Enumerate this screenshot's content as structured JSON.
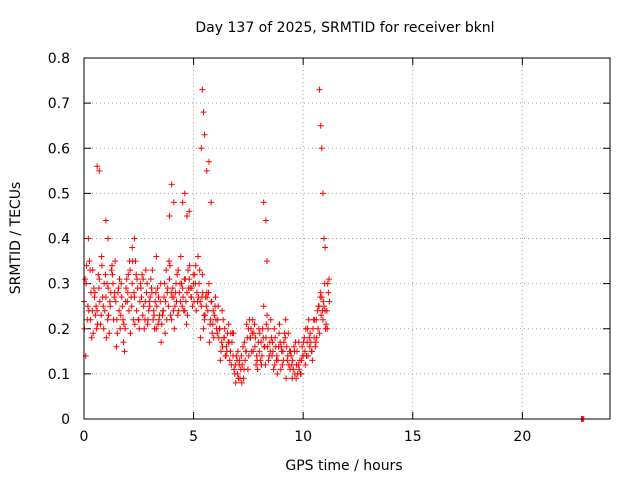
{
  "chart_data": {
    "type": "scatter",
    "title": "Day 137 of 2025, SRMTID for receiver bknl",
    "xlabel": "GPS time / hours",
    "ylabel": "SRMTID / TECUs",
    "xlim": [
      0,
      24
    ],
    "ylim": [
      0,
      0.8
    ],
    "grid": true,
    "marker": "plus",
    "series": [
      {
        "name": "SRMTID",
        "color": "#ff0000",
        "x": [
          0.0,
          0.1,
          0.2,
          0.3,
          0.4,
          0.5,
          0.6,
          0.7,
          0.8,
          0.9,
          1.0,
          1.1,
          1.2,
          1.3,
          1.4,
          1.5,
          1.6,
          1.7,
          1.8,
          1.9,
          2.0,
          2.1,
          2.2,
          2.3,
          2.4,
          2.5,
          2.6,
          2.7,
          2.8,
          2.9,
          3.0,
          3.1,
          3.2,
          3.3,
          3.4,
          3.5,
          3.6,
          3.7,
          3.8,
          3.9,
          4.0,
          4.1,
          4.2,
          4.3,
          4.4,
          4.5,
          4.6,
          4.7,
          4.8,
          4.9,
          5.0,
          5.1,
          5.2,
          5.3,
          5.4,
          5.5,
          5.6,
          5.7,
          5.8,
          5.9,
          6.0,
          6.1,
          6.2,
          6.3,
          6.4,
          6.5,
          6.6,
          6.7,
          6.8,
          6.9,
          7.0,
          7.1,
          7.2,
          7.3,
          7.4,
          7.5,
          7.6,
          7.7,
          7.8,
          7.9,
          8.0,
          8.1,
          8.2,
          8.3,
          8.4,
          8.5,
          8.6,
          8.7,
          8.8,
          8.9,
          9.0,
          9.1,
          9.2,
          9.3,
          9.4,
          9.5,
          9.6,
          9.7,
          9.8,
          9.9,
          10.0,
          10.1,
          10.2,
          10.3,
          10.4,
          10.5,
          10.6,
          10.7,
          10.8,
          10.9,
          11.0,
          11.1,
          11.2,
          0.05,
          0.15,
          0.25,
          0.35,
          0.45,
          0.55,
          0.65,
          0.75,
          0.85,
          0.95,
          1.05,
          1.15,
          1.25,
          1.35,
          1.45,
          1.55,
          1.65,
          1.75,
          1.85,
          1.95,
          2.05,
          2.15,
          2.25,
          2.35,
          2.45,
          2.55,
          2.65,
          2.75,
          2.85,
          2.95,
          3.05,
          3.15,
          3.25,
          3.35,
          3.45,
          3.55,
          3.65,
          3.75,
          3.85,
          3.95,
          4.05,
          4.15,
          4.25,
          4.35,
          4.45,
          4.55,
          4.65,
          4.75,
          4.85,
          4.95,
          5.05,
          5.15,
          5.25,
          5.35,
          5.45,
          5.55,
          5.65,
          5.75,
          5.85,
          5.95,
          6.05,
          6.15,
          6.25,
          6.35,
          6.45,
          6.55,
          6.65,
          6.75,
          6.85,
          6.95,
          7.05,
          7.15,
          7.25,
          7.35,
          7.45,
          7.55,
          7.65,
          7.75,
          7.85,
          7.95,
          8.05,
          8.15,
          8.25,
          8.35,
          8.45,
          8.55,
          8.65,
          8.75,
          8.85,
          8.95,
          9.05,
          9.15,
          9.25,
          9.35,
          9.45,
          9.55,
          9.65,
          9.75,
          9.85,
          9.95,
          10.05,
          10.15,
          10.25,
          10.35,
          10.45,
          10.55,
          10.65,
          10.75,
          10.85,
          10.95,
          11.05,
          11.15,
          0.02,
          0.12,
          0.22,
          0.32,
          0.42,
          0.52,
          0.62,
          0.72,
          0.82,
          0.92,
          1.02,
          1.12,
          1.22,
          1.32,
          1.42,
          1.52,
          1.62,
          1.72,
          1.82,
          1.92,
          2.02,
          2.12,
          2.22,
          2.32,
          2.42,
          2.52,
          2.62,
          2.72,
          2.82,
          2.92,
          3.02,
          3.12,
          3.22,
          3.32,
          3.42,
          3.52,
          3.62,
          3.72,
          3.82,
          3.92,
          4.02,
          4.12,
          4.22,
          4.32,
          4.42,
          4.52,
          4.62,
          4.72,
          4.82,
          4.92,
          5.02,
          5.12,
          5.22,
          5.32,
          5.42,
          5.52,
          5.62,
          5.72,
          5.82,
          5.92,
          6.02,
          6.12,
          6.22,
          6.32,
          6.42,
          6.52,
          6.62,
          6.72,
          6.82,
          6.92,
          7.02,
          7.12,
          7.22,
          7.32,
          7.42,
          7.52,
          7.62,
          7.72,
          7.82,
          7.92,
          8.02,
          8.12,
          8.22,
          8.32,
          8.42,
          8.52,
          8.62,
          8.72,
          8.82,
          8.92,
          9.02,
          9.12,
          9.22,
          9.32,
          9.42,
          9.52,
          9.62,
          9.72,
          9.82,
          9.92,
          10.02,
          10.12,
          10.22,
          10.32,
          10.42,
          10.52,
          10.62,
          10.72,
          10.82,
          10.92,
          11.02,
          11.12,
          0.08,
          0.18,
          0.28,
          0.38,
          0.48,
          0.58,
          0.68,
          0.78,
          0.88,
          0.98,
          1.08,
          1.18,
          1.28,
          1.38,
          1.48,
          1.58,
          1.68,
          1.78,
          1.88,
          1.98,
          2.08,
          2.18,
          2.28,
          2.38,
          2.48,
          2.58,
          2.68,
          2.78,
          2.88,
          2.98,
          3.08,
          3.18,
          3.28,
          3.38,
          3.48,
          3.58,
          3.68,
          3.78,
          3.88,
          3.98,
          4.08,
          4.18,
          4.28,
          4.38,
          4.48,
          4.58,
          4.68,
          4.78,
          4.88,
          4.98,
          5.08,
          5.18,
          5.28,
          5.38,
          5.48,
          5.58,
          5.68,
          5.78,
          5.88,
          5.98,
          6.08,
          6.18,
          6.28,
          6.38,
          6.48,
          6.58,
          6.68,
          6.78,
          6.88,
          6.98,
          7.08,
          7.18,
          7.28,
          7.38,
          7.48,
          7.58,
          7.68,
          7.78,
          7.88,
          7.98,
          8.08,
          8.18,
          8.28,
          8.38,
          8.48,
          8.58,
          8.68,
          8.78,
          8.88,
          8.98,
          9.08,
          9.18,
          9.28,
          9.38,
          9.48,
          9.58,
          9.68,
          9.78,
          9.88,
          9.98,
          10.08,
          10.18,
          10.28,
          10.38,
          10.48,
          10.58,
          10.68,
          10.78,
          10.88,
          10.98,
          11.08,
          11.18,
          0.6,
          0.7,
          5.35,
          5.4,
          5.45,
          5.5,
          5.6,
          5.7,
          5.8,
          10.75,
          10.8,
          10.85,
          10.9,
          10.95,
          11.0,
          8.2,
          8.3,
          8.35,
          4.0,
          4.1,
          1.0,
          1.1,
          2.2,
          2.3,
          3.3,
          3.9,
          4.5,
          4.6,
          4.7,
          4.8,
          22.7,
          22.75,
          22.8
        ],
        "y": [
          0.26,
          0.3,
          0.4,
          0.22,
          0.33,
          0.28,
          0.24,
          0.31,
          0.36,
          0.2,
          0.27,
          0.29,
          0.25,
          0.32,
          0.28,
          0.22,
          0.24,
          0.3,
          0.17,
          0.26,
          0.28,
          0.33,
          0.3,
          0.27,
          0.24,
          0.22,
          0.29,
          0.31,
          0.26,
          0.21,
          0.25,
          0.28,
          0.23,
          0.2,
          0.27,
          0.3,
          0.24,
          0.19,
          0.28,
          0.31,
          0.22,
          0.27,
          0.3,
          0.33,
          0.26,
          0.29,
          0.24,
          0.28,
          0.31,
          0.27,
          0.3,
          0.34,
          0.36,
          0.26,
          0.32,
          0.22,
          0.28,
          0.3,
          0.26,
          0.24,
          0.27,
          0.22,
          0.2,
          0.24,
          0.18,
          0.16,
          0.21,
          0.19,
          0.14,
          0.12,
          0.1,
          0.13,
          0.08,
          0.11,
          0.15,
          0.2,
          0.18,
          0.22,
          0.16,
          0.13,
          0.15,
          0.12,
          0.25,
          0.18,
          0.2,
          0.15,
          0.17,
          0.12,
          0.14,
          0.19,
          0.16,
          0.13,
          0.22,
          0.14,
          0.11,
          0.09,
          0.15,
          0.12,
          0.17,
          0.1,
          0.14,
          0.12,
          0.2,
          0.16,
          0.15,
          0.18,
          0.22,
          0.25,
          0.28,
          0.22,
          0.24,
          0.2,
          0.26,
          0.31,
          0.22,
          0.35,
          0.18,
          0.29,
          0.25,
          0.32,
          0.21,
          0.27,
          0.24,
          0.3,
          0.19,
          0.33,
          0.22,
          0.26,
          0.28,
          0.2,
          0.25,
          0.15,
          0.31,
          0.24,
          0.27,
          0.22,
          0.35,
          0.29,
          0.26,
          0.32,
          0.2,
          0.28,
          0.24,
          0.31,
          0.22,
          0.26,
          0.29,
          0.23,
          0.21,
          0.27,
          0.33,
          0.25,
          0.23,
          0.29,
          0.25,
          0.32,
          0.28,
          0.3,
          0.24,
          0.26,
          0.33,
          0.29,
          0.25,
          0.32,
          0.28,
          0.3,
          0.25,
          0.2,
          0.27,
          0.24,
          0.21,
          0.19,
          0.23,
          0.2,
          0.18,
          0.15,
          0.22,
          0.14,
          0.19,
          0.13,
          0.17,
          0.11,
          0.14,
          0.09,
          0.11,
          0.16,
          0.13,
          0.18,
          0.22,
          0.15,
          0.19,
          0.12,
          0.17,
          0.13,
          0.2,
          0.16,
          0.23,
          0.14,
          0.18,
          0.11,
          0.16,
          0.13,
          0.17,
          0.12,
          0.19,
          0.16,
          0.12,
          0.14,
          0.11,
          0.17,
          0.1,
          0.13,
          0.16,
          0.18,
          0.14,
          0.22,
          0.17,
          0.2,
          0.16,
          0.24,
          0.19,
          0.27,
          0.25,
          0.21,
          0.28,
          0.2,
          0.34,
          0.24,
          0.28,
          0.19,
          0.23,
          0.21,
          0.26,
          0.34,
          0.3,
          0.18,
          0.23,
          0.28,
          0.3,
          0.35,
          0.19,
          0.31,
          0.27,
          0.21,
          0.29,
          0.32,
          0.19,
          0.35,
          0.21,
          0.31,
          0.2,
          0.27,
          0.25,
          0.33,
          0.22,
          0.27,
          0.33,
          0.2,
          0.25,
          0.22,
          0.17,
          0.24,
          0.26,
          0.29,
          0.34,
          0.27,
          0.2,
          0.26,
          0.24,
          0.36,
          0.27,
          0.31,
          0.23,
          0.34,
          0.29,
          0.26,
          0.24,
          0.27,
          0.18,
          0.28,
          0.23,
          0.27,
          0.17,
          0.26,
          0.18,
          0.22,
          0.25,
          0.13,
          0.16,
          0.2,
          0.15,
          0.17,
          0.12,
          0.19,
          0.08,
          0.15,
          0.09,
          0.12,
          0.17,
          0.21,
          0.14,
          0.2,
          0.15,
          0.18,
          0.11,
          0.19,
          0.14,
          0.16,
          0.21,
          0.13,
          0.22,
          0.15,
          0.18,
          0.1,
          0.21,
          0.15,
          0.17,
          0.09,
          0.19,
          0.15,
          0.13,
          0.1,
          0.15,
          0.11,
          0.13,
          0.17,
          0.2,
          0.14,
          0.19,
          0.13,
          0.22,
          0.18,
          0.25,
          0.23,
          0.26,
          0.2,
          0.3,
          0.14,
          0.25,
          0.33,
          0.24,
          0.27,
          0.2,
          0.29,
          0.23,
          0.25,
          0.32,
          0.22,
          0.26,
          0.34,
          0.27,
          0.16,
          0.29,
          0.23,
          0.22,
          0.2,
          0.26,
          0.35,
          0.25,
          0.28,
          0.32,
          0.22,
          0.3,
          0.23,
          0.22,
          0.3,
          0.26,
          0.29,
          0.24,
          0.28,
          0.21,
          0.26,
          0.23,
          0.3,
          0.22,
          0.35,
          0.28,
          0.24,
          0.28,
          0.23,
          0.3,
          0.25,
          0.31,
          0.21,
          0.29,
          0.27,
          0.32,
          0.3,
          0.26,
          0.33,
          0.27,
          0.23,
          0.25,
          0.28,
          0.22,
          0.21,
          0.25,
          0.19,
          0.2,
          0.17,
          0.18,
          0.14,
          0.17,
          0.15,
          0.19,
          0.1,
          0.13,
          0.12,
          0.14,
          0.09,
          0.15,
          0.11,
          0.18,
          0.19,
          0.21,
          0.14,
          0.2,
          0.17,
          0.18,
          0.12,
          0.16,
          0.17,
          0.14,
          0.2,
          0.13,
          0.16,
          0.11,
          0.15,
          0.18,
          0.13,
          0.15,
          0.12,
          0.16,
          0.09,
          0.12,
          0.1,
          0.14,
          0.15,
          0.17,
          0.18,
          0.15,
          0.22,
          0.17,
          0.2,
          0.27,
          0.24,
          0.3,
          0.24,
          0.31,
          0.56,
          0.55,
          0.6,
          0.73,
          0.68,
          0.63,
          0.55,
          0.57,
          0.48,
          0.73,
          0.65,
          0.6,
          0.5,
          0.4,
          0.38,
          0.48,
          0.44,
          0.35,
          0.52,
          0.48,
          0.44,
          0.4,
          0.38,
          0.4,
          0.36,
          0.45,
          0.48,
          0.5,
          0.45,
          0.46,
          0.0,
          0.0,
          0.0
        ]
      }
    ],
    "xticks": [
      "0",
      "5",
      "10",
      "15",
      "20"
    ],
    "yticks": [
      "0",
      "0.1",
      "0.2",
      "0.3",
      "0.4",
      "0.5",
      "0.6",
      "0.7",
      "0.8"
    ]
  }
}
